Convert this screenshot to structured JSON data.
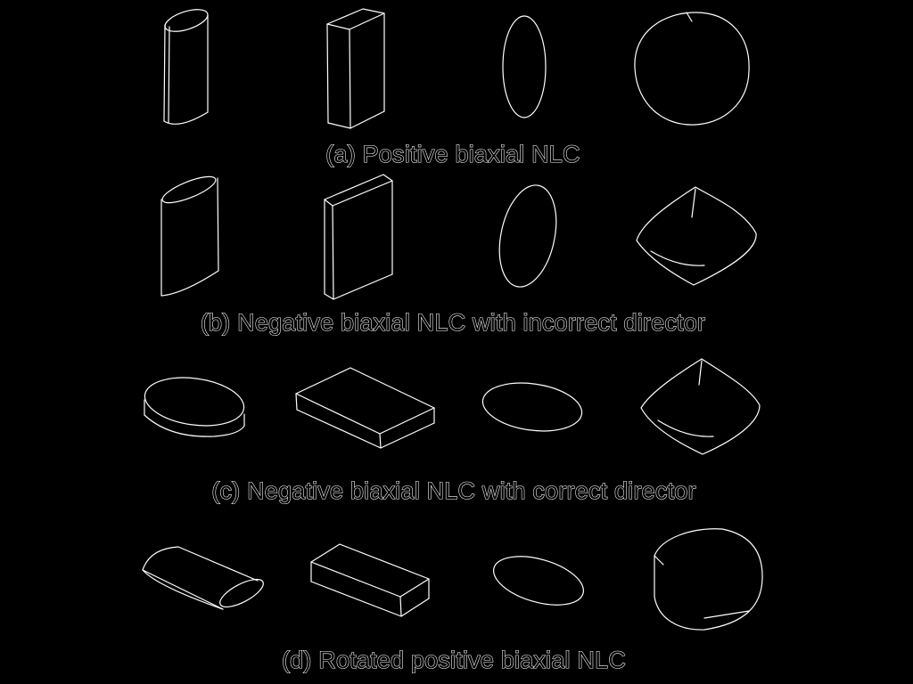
{
  "captions": {
    "a": "(a) Positive biaxial NLC",
    "b": "(b) Negative biaxial NLC with incorrect director",
    "c": "(c) Negative biaxial NLC with correct director",
    "d": "(d) Rotated positive biaxial NLC"
  },
  "colors": {
    "background": "#000000",
    "outline": "#ffffff"
  }
}
